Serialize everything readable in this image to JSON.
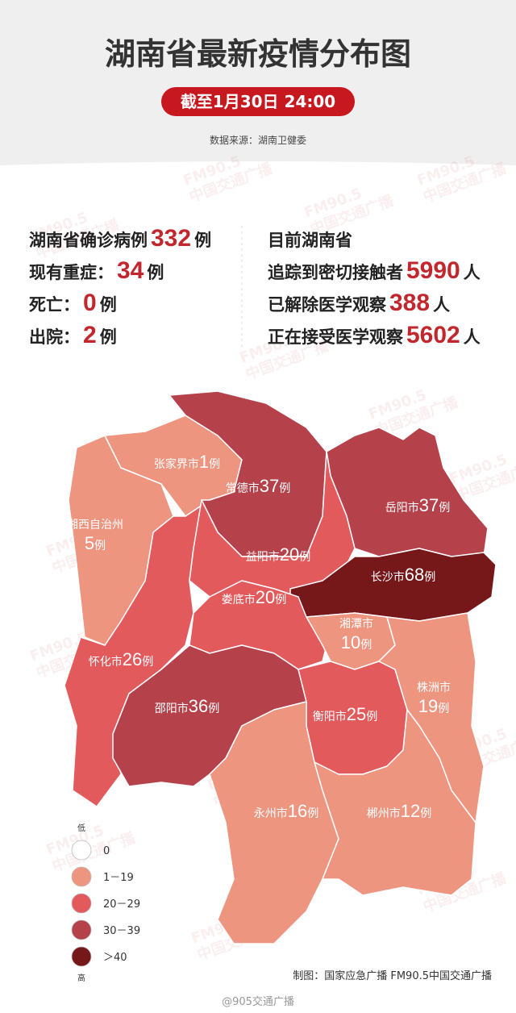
{
  "header": {
    "title": "湖南省最新疫情分布图",
    "date": "截至1月30日 24:00",
    "source": "数据来源：湖南卫健委"
  },
  "left_stats": [
    {
      "label": "湖南省确诊病例",
      "value": "332",
      "unit": "例"
    },
    {
      "label": "现有重症：",
      "value": "34",
      "unit": "例"
    },
    {
      "label": "死亡：",
      "value": "0",
      "unit": "例"
    },
    {
      "label": "出院：",
      "value": "2",
      "unit": "例"
    }
  ],
  "right_stats": {
    "heading": "目前湖南省",
    "items": [
      {
        "label": "追踪到密切接触者",
        "value": "5990",
        "unit": "人"
      },
      {
        "label": "已解除医学观察",
        "value": "388",
        "unit": "人"
      },
      {
        "label": "正在接受医学观察",
        "value": "5602",
        "unit": "人"
      }
    ]
  },
  "regions": [
    {
      "name": "怀化市",
      "cases": 26,
      "unit": "例",
      "color": "#e35a5d"
    },
    {
      "name": "湘西自治州",
      "cases": 5,
      "unit": "例",
      "color": "#ee9580"
    },
    {
      "name": "张家界市",
      "cases": 1,
      "unit": "例",
      "color": "#ee9580"
    },
    {
      "name": "常德市",
      "cases": 37,
      "unit": "例",
      "color": "#b5424a"
    },
    {
      "name": "岳阳市",
      "cases": 37,
      "unit": "例",
      "color": "#b5424a"
    },
    {
      "name": "益阳市",
      "cases": 20,
      "unit": "例",
      "color": "#e35a5d"
    },
    {
      "name": "长沙市",
      "cases": 68,
      "unit": "例",
      "color": "#761819"
    },
    {
      "name": "娄底市",
      "cases": 20,
      "unit": "例",
      "color": "#e35a5d"
    },
    {
      "name": "湘潭市",
      "cases": 10,
      "unit": "例",
      "color": "#ee9580"
    },
    {
      "name": "邵阳市",
      "cases": 36,
      "unit": "例",
      "color": "#b5424a"
    },
    {
      "name": "衡阳市",
      "cases": 25,
      "unit": "例",
      "color": "#e35a5d"
    },
    {
      "name": "株洲市",
      "cases": 19,
      "unit": "例",
      "color": "#ee9580"
    },
    {
      "name": "永州市",
      "cases": 16,
      "unit": "例",
      "color": "#ee9580"
    },
    {
      "name": "郴州市",
      "cases": 12,
      "unit": "例",
      "color": "#ee9580"
    }
  ],
  "legend": {
    "low": "低",
    "high": "高",
    "items": [
      {
        "label": "0",
        "color": "#ffffff"
      },
      {
        "label": "1－19",
        "color": "#ee9580"
      },
      {
        "label": "20－29",
        "color": "#e35a5d"
      },
      {
        "label": "30－39",
        "color": "#b5424a"
      },
      {
        "label": "＞40",
        "color": "#761819"
      }
    ]
  },
  "footer": {
    "credit": "制图：国家应急广播 FM90.5中国交通广播",
    "weibo": "@905交通广播"
  },
  "watermark": {
    "brand": "FM90.5",
    "name": "中国交通广播"
  }
}
